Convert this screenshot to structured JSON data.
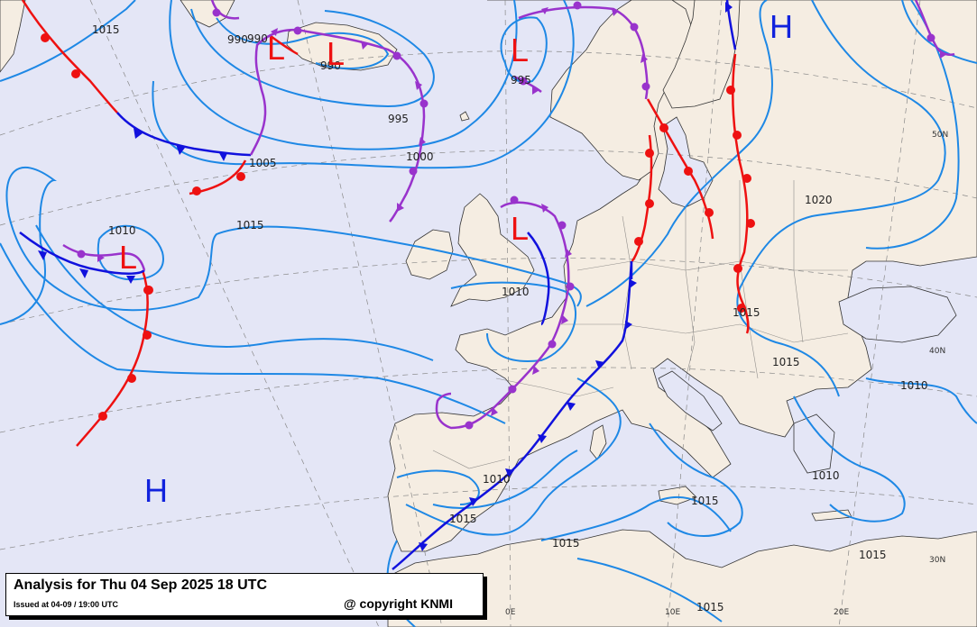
{
  "map": {
    "colors": {
      "sea": "#e4e6f6",
      "land": "#f5ede2",
      "isobar": "#1e88e5",
      "warm_front": "#ee1111",
      "cold_front": "#1111dd",
      "occluded_front": "#9933cc",
      "low_center": "#ee1111",
      "high_center": "#1122dd"
    },
    "isobar_labels": [
      {
        "id": "1015-nw",
        "text": "1015"
      },
      {
        "id": "990-a",
        "text": "990"
      },
      {
        "id": "990-b",
        "text": "990"
      },
      {
        "id": "990-c",
        "text": "990"
      },
      {
        "id": "995-a",
        "text": "995"
      },
      {
        "id": "995-b",
        "text": "995"
      },
      {
        "id": "1000",
        "text": "1000"
      },
      {
        "id": "1005",
        "text": "1005"
      },
      {
        "id": "1015-atl",
        "text": "1015"
      },
      {
        "id": "1010-atl",
        "text": "1010"
      },
      {
        "id": "1010-uk",
        "text": "1010"
      },
      {
        "id": "1020-ru",
        "text": "1020"
      },
      {
        "id": "1015-pl",
        "text": "1015"
      },
      {
        "id": "1015-bal",
        "text": "1015"
      },
      {
        "id": "1010-tr",
        "text": "1010"
      },
      {
        "id": "1010-gr",
        "text": "1010"
      },
      {
        "id": "1015-ion",
        "text": "1015"
      },
      {
        "id": "1015-sp",
        "text": "1015"
      },
      {
        "id": "1015-alb",
        "text": "1015"
      },
      {
        "id": "1015-med",
        "text": "1015"
      },
      {
        "id": "1015-lib",
        "text": "1015"
      },
      {
        "id": "1010-sp",
        "text": "1010"
      }
    ],
    "pressure_centers": [
      {
        "id": "low-iceland-west",
        "letter": "L"
      },
      {
        "id": "low-iceland-east",
        "letter": "L"
      },
      {
        "id": "low-norway",
        "letter": "L"
      },
      {
        "id": "low-atlantic",
        "letter": "L"
      },
      {
        "id": "low-uk",
        "letter": "L"
      },
      {
        "id": "high-russia",
        "letter": "H"
      },
      {
        "id": "high-azores",
        "letter": "H"
      }
    ],
    "grid_labels": [
      {
        "id": "50n",
        "text": "50N"
      },
      {
        "id": "40n",
        "text": "40N"
      },
      {
        "id": "30n",
        "text": "30N"
      },
      {
        "id": "0e",
        "text": "0E"
      },
      {
        "id": "10e",
        "text": "10E"
      },
      {
        "id": "20e",
        "text": "20E"
      }
    ]
  },
  "info": {
    "title": "Analysis for Thu 04 Sep 2025 18 UTC",
    "issued": "Issued at 04-09 / 19:00 UTC",
    "copyright": "@ copyright KNMI"
  }
}
